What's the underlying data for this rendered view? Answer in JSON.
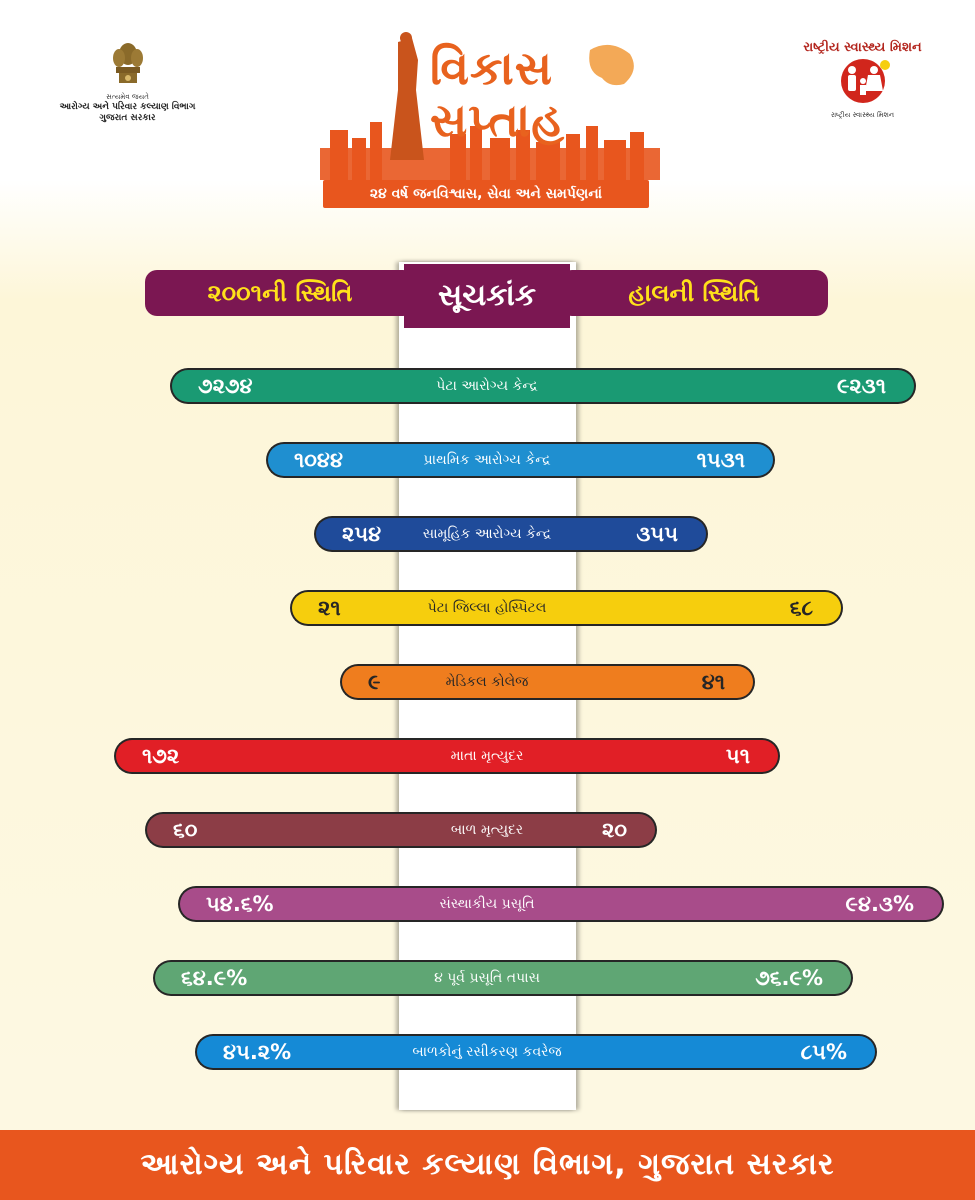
{
  "header": {
    "emblem_motto": "સત્યમેવ જયતે",
    "dept_line1": "આરોગ્ય અને પરિવાર કલ્યાણ વિભાગ",
    "dept_line2": "ગુજરાત સરકાર",
    "campaign_title1": "વિકાસ",
    "campaign_title2": "સપ્તાહ",
    "campaign_tagline": "૨૪ વર્ષ જનવિશ્વાસ, સેવા અને સમર્પણનાં",
    "nhm_arc": "રાષ્ટ્રીય સ્વાસ્થ્ય મિશન",
    "nhm_sub": "રાષ્ટ્રીય સ્વાસ્થ્ય મિશન"
  },
  "columns": {
    "left": "૨૦૦૧ની સ્થિતિ",
    "center": "સૂચકાંક",
    "right": "હાલની સ્થિતિ"
  },
  "chart_data": {
    "type": "bar",
    "categories": [
      "પેટા આરોગ્ય કેન્દ્ર",
      "પ્રાથમિક આરોગ્ય કેન્દ્ર",
      "સામૂહિક આરોગ્ય કેન્દ્ર",
      "પેટા જિલ્લા હોસ્પિટલ",
      "મેડિકલ કોલેજ",
      "માતા મૃત્યુદર",
      "બાળ મૃત્યુદર",
      "સંસ્થાકીય પ્રસૂતિ",
      "૪ પૂર્વ પ્રસૂતિ તપાસ",
      "બાળકોનું રસીકરણ કવરેજ"
    ],
    "series": [
      {
        "name": "૨૦૦૧ની સ્થિતિ",
        "values": [
          7274,
          1044,
          254,
          21,
          9,
          172,
          60,
          54.6,
          64.9,
          45.2
        ],
        "labels": [
          "૭૨૭૪",
          "૧૦૪૪",
          "૨૫૪",
          "૨૧",
          "૯",
          "૧૭૨",
          "૬૦",
          "૫૪.૬%",
          "૬૪.૯%",
          "૪૫.૨%"
        ]
      },
      {
        "name": "હાલની સ્થિતિ",
        "values": [
          9231,
          1531,
          355,
          68,
          41,
          51,
          20,
          94.3,
          76.9,
          85
        ],
        "labels": [
          "૯૨૩૧",
          "૧૫૩૧",
          "૩૫૫",
          "૬૮",
          "૪૧",
          "૫૧",
          "૨૦",
          "૯૪.૩%",
          "૭૬.૯%",
          "૮૫%"
        ]
      }
    ],
    "colors": [
      "#1a9a73",
      "#1f8fd0",
      "#1f4b9a",
      "#f6ce0d",
      "#ef7d1e",
      "#e11f26",
      "#8c3d46",
      "#a84c8a",
      "#5fa674",
      "#158ad6"
    ]
  },
  "footer": "આરોગ્ય અને પરિવાર કલ્યાણ વિભાગ, ગુજરાત સરકાર"
}
